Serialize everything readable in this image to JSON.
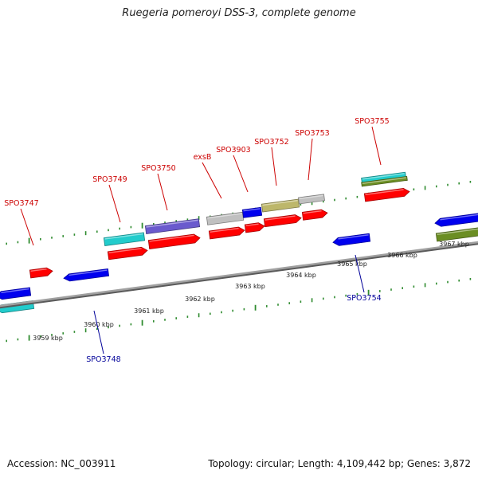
{
  "title": "Ruegeria pomeroyi DSS-3, complete genome",
  "accession": "Accession: NC_003911",
  "summary": "Topology: circular; Length: 4,109,442 bp; Genes: 3,872",
  "colors": {
    "backbone": "#8c8c8c",
    "ticks": "#2e8b2e",
    "forward_label": "#cc0000",
    "reverse_label": "#000099",
    "cds_forward": "#ff0000",
    "cds_reverse": "#0000ee",
    "cyan": "#22cccc",
    "slate": "#6a5acd",
    "grey": "#c0c0c0",
    "olive": "#6b8e23",
    "khaki": "#bdb76b"
  },
  "kbp_labels": [
    {
      "kbp": 3959,
      "text": "3959 kbp"
    },
    {
      "kbp": 3960,
      "text": "3960 kbp"
    },
    {
      "kbp": 3961,
      "text": "3961 kbp"
    },
    {
      "kbp": 3962,
      "text": "3962 kbp"
    },
    {
      "kbp": 3963,
      "text": "3963 kbp"
    },
    {
      "kbp": 3964,
      "text": "3964 kbp"
    },
    {
      "kbp": 3965,
      "text": "3965 kbp"
    },
    {
      "kbp": 3966,
      "text": "3966 kbp"
    },
    {
      "kbp": 3967,
      "text": "3967 kbp"
    }
  ],
  "gene_labels": [
    {
      "text": "SPO3747",
      "strand": "forward"
    },
    {
      "text": "SPO3748",
      "strand": "reverse"
    },
    {
      "text": "SPO3749",
      "strand": "forward"
    },
    {
      "text": "SPO3750",
      "strand": "forward"
    },
    {
      "text": "exsB",
      "strand": "forward"
    },
    {
      "text": "SPO3903",
      "strand": "forward"
    },
    {
      "text": "SPO3752",
      "strand": "forward"
    },
    {
      "text": "SPO3753",
      "strand": "forward"
    },
    {
      "text": "SPO3754",
      "strand": "reverse"
    },
    {
      "text": "SPO3755",
      "strand": "forward"
    }
  ]
}
